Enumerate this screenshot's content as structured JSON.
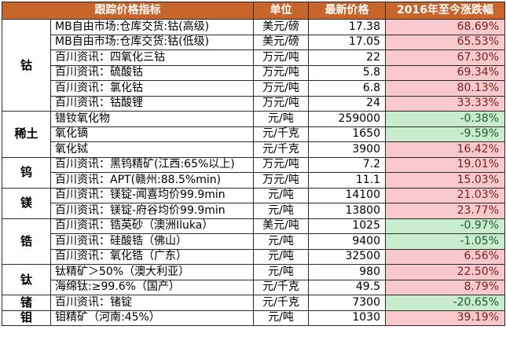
{
  "headers": {
    "indicator": "跟踪价格指标",
    "unit": "单位",
    "price": "最新价格",
    "change": "2016年至今涨跌幅"
  },
  "groups": [
    {
      "metal": "钴",
      "rows": [
        {
          "name": "MB自由市场:仓库交货:钴(高级)",
          "unit": "美元/磅",
          "price": "17.38",
          "change": "68.69%",
          "direction": "up"
        },
        {
          "name": "MB自由市场:仓库交货:钴(低级)",
          "unit": "美元/磅",
          "price": "17.05",
          "change": "65.53%",
          "direction": "up"
        },
        {
          "name": "百川资讯：四氧化三钴",
          "unit": "万元/吨",
          "price": "22",
          "change": "67.30%",
          "direction": "up"
        },
        {
          "name": "百川资讯：硫酸钴",
          "unit": "万元/吨",
          "price": "5.8",
          "change": "69.34%",
          "direction": "up"
        },
        {
          "name": "百川资讯：氯化钴",
          "unit": "万元/吨",
          "price": "6.8",
          "change": "80.13%",
          "direction": "up"
        },
        {
          "name": "百川资讯：钴酸锂",
          "unit": "万元/吨",
          "price": "24",
          "change": "33.33%",
          "direction": "up"
        }
      ]
    },
    {
      "metal": "稀土",
      "rows": [
        {
          "name": "镨钕氧化物",
          "unit": "元/吨",
          "price": "259000",
          "change": "-0.38%",
          "direction": "down"
        },
        {
          "name": "氧化镝",
          "unit": "元/千克",
          "price": "1650",
          "change": "-9.59%",
          "direction": "down"
        },
        {
          "name": "氧化铽",
          "unit": "元/千克",
          "price": "3900",
          "change": "16.42%",
          "direction": "up"
        }
      ]
    },
    {
      "metal": "钨",
      "rows": [
        {
          "name": "百川资讯：黑钨精矿(江西:65%以上)",
          "unit": "万元/吨",
          "price": "7.2",
          "change": "19.01%",
          "direction": "up"
        },
        {
          "name": "百川资讯：APT(赣州:88.5%min)",
          "unit": "万元/吨",
          "price": "11.1",
          "change": "15.03%",
          "direction": "up"
        }
      ]
    },
    {
      "metal": "镁",
      "rows": [
        {
          "name": "百川资讯：镁锭-闻喜均价99.9min",
          "unit": "元/吨",
          "price": "14100",
          "change": "21.03%",
          "direction": "up"
        },
        {
          "name": "百川资讯：镁锭-府谷均价99.9min",
          "unit": "元/吨",
          "price": "13800",
          "change": "23.77%",
          "direction": "up"
        }
      ]
    },
    {
      "metal": "锆",
      "rows": [
        {
          "name": "百川资讯：锆英砂（澳洲Iluka）",
          "unit": "美元/吨",
          "price": "1025",
          "change": "-0.97%",
          "direction": "down"
        },
        {
          "name": "百川资讯：硅酸锆（佛山）",
          "unit": "元/吨",
          "price": "9400",
          "change": "-1.05%",
          "direction": "down"
        },
        {
          "name": "百川资讯：氧化锆（广东）",
          "unit": "元/吨",
          "price": "32500",
          "change": "6.56%",
          "direction": "up"
        }
      ]
    },
    {
      "metal": "钛",
      "rows": [
        {
          "name": "钛精矿＞50%（澳大利亚）",
          "unit": "元/吨",
          "price": "980",
          "change": "22.50%",
          "direction": "up"
        },
        {
          "name": "海绵钛:≥99.6%（国产）",
          "unit": "元/千克",
          "price": "49.5",
          "change": "8.79%",
          "direction": "up"
        }
      ]
    },
    {
      "metal": "锗",
      "rows": [
        {
          "name": "百川资讯：锗锭",
          "unit": "元/千克",
          "price": "7300",
          "change": "-20.65%",
          "direction": "down"
        }
      ]
    },
    {
      "metal": "钼",
      "rows": [
        {
          "name": "钼精矿（河南:45%）",
          "unit": "元/吨",
          "price": "1030",
          "change": "39.19%",
          "direction": "up"
        }
      ]
    }
  ]
}
